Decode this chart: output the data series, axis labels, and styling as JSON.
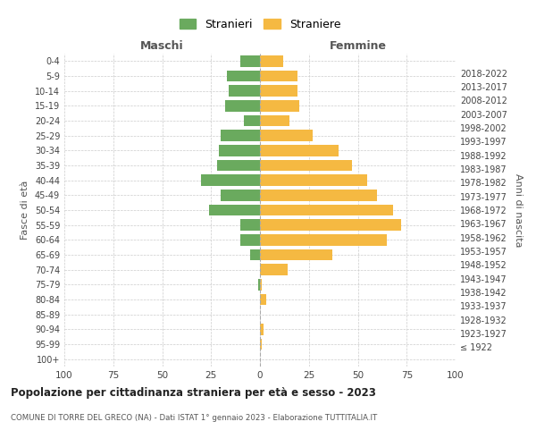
{
  "age_groups": [
    "100+",
    "95-99",
    "90-94",
    "85-89",
    "80-84",
    "75-79",
    "70-74",
    "65-69",
    "60-64",
    "55-59",
    "50-54",
    "45-49",
    "40-44",
    "35-39",
    "30-34",
    "25-29",
    "20-24",
    "15-19",
    "10-14",
    "5-9",
    "0-4"
  ],
  "birth_years": [
    "≤ 1922",
    "1923-1927",
    "1928-1932",
    "1933-1937",
    "1938-1942",
    "1943-1947",
    "1948-1952",
    "1953-1957",
    "1958-1962",
    "1963-1967",
    "1968-1972",
    "1973-1977",
    "1978-1982",
    "1983-1987",
    "1988-1992",
    "1993-1997",
    "1998-2002",
    "2003-2007",
    "2008-2012",
    "2013-2017",
    "2018-2022"
  ],
  "maschi": [
    0,
    0,
    0,
    0,
    0,
    1,
    0,
    5,
    10,
    10,
    26,
    20,
    30,
    22,
    21,
    20,
    8,
    18,
    16,
    17,
    10
  ],
  "femmine": [
    0,
    1,
    2,
    0,
    3,
    1,
    14,
    37,
    65,
    72,
    68,
    60,
    55,
    47,
    40,
    27,
    15,
    20,
    19,
    19,
    12
  ],
  "maschi_color": "#6aaa5e",
  "femmine_color": "#f5b942",
  "title": "Popolazione per cittadinanza straniera per età e sesso - 2023",
  "subtitle": "COMUNE DI TORRE DEL GRECO (NA) - Dati ISTAT 1° gennaio 2023 - Elaborazione TUTTITALIA.IT",
  "xlabel_left": "Maschi",
  "xlabel_right": "Femmine",
  "ylabel_left": "Fasce di età",
  "ylabel_right": "Anni di nascita",
  "legend_maschi": "Stranieri",
  "legend_femmine": "Straniere",
  "xlim": 100,
  "background_color": "#ffffff",
  "grid_color": "#cccccc"
}
